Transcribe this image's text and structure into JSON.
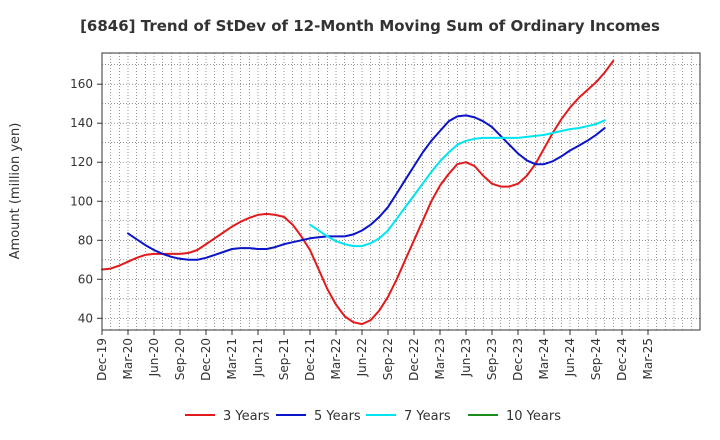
{
  "chart_data": {
    "type": "line",
    "title": "[6846]  Trend of StDev of 12-Month Moving Sum of Ordinary Incomes",
    "xlabel": "",
    "ylabel": "Amount (million yen)",
    "ylim": [
      34,
      176
    ],
    "yticks": [
      40,
      60,
      80,
      100,
      120,
      140,
      160
    ],
    "xlim": [
      0,
      69
    ],
    "xticks": [
      {
        "pos": 0,
        "label": "Dec-19"
      },
      {
        "pos": 3,
        "label": "Mar-20"
      },
      {
        "pos": 6,
        "label": "Jun-20"
      },
      {
        "pos": 9,
        "label": "Sep-20"
      },
      {
        "pos": 12,
        "label": "Dec-20"
      },
      {
        "pos": 15,
        "label": "Mar-21"
      },
      {
        "pos": 18,
        "label": "Jun-21"
      },
      {
        "pos": 21,
        "label": "Sep-21"
      },
      {
        "pos": 24,
        "label": "Dec-21"
      },
      {
        "pos": 27,
        "label": "Mar-22"
      },
      {
        "pos": 30,
        "label": "Jun-22"
      },
      {
        "pos": 33,
        "label": "Sep-22"
      },
      {
        "pos": 36,
        "label": "Dec-22"
      },
      {
        "pos": 39,
        "label": "Mar-23"
      },
      {
        "pos": 42,
        "label": "Jun-23"
      },
      {
        "pos": 45,
        "label": "Sep-23"
      },
      {
        "pos": 48,
        "label": "Dec-23"
      },
      {
        "pos": 51,
        "label": "Mar-24"
      },
      {
        "pos": 54,
        "label": "Jun-24"
      },
      {
        "pos": 57,
        "label": "Sep-24"
      },
      {
        "pos": 60,
        "label": "Dec-24"
      },
      {
        "pos": 63,
        "label": "Mar-25"
      }
    ],
    "grid": true,
    "legend_position": "bottom",
    "series": [
      {
        "name": "3 Years",
        "color": "#e31a1c",
        "points": [
          [
            0,
            65
          ],
          [
            1,
            65.5
          ],
          [
            2,
            67
          ],
          [
            3,
            69
          ],
          [
            4,
            71
          ],
          [
            5,
            72.5
          ],
          [
            6,
            73
          ],
          [
            7,
            73
          ],
          [
            8,
            73
          ],
          [
            9,
            73
          ],
          [
            10,
            73.5
          ],
          [
            11,
            75
          ],
          [
            12,
            78
          ],
          [
            13,
            81
          ],
          [
            14,
            84
          ],
          [
            15,
            87
          ],
          [
            16,
            89.5
          ],
          [
            17,
            91.5
          ],
          [
            18,
            93
          ],
          [
            19,
            93.5
          ],
          [
            20,
            93
          ],
          [
            21,
            92
          ],
          [
            22,
            88
          ],
          [
            23,
            82
          ],
          [
            24,
            75
          ],
          [
            25,
            65
          ],
          [
            26,
            55
          ],
          [
            27,
            47
          ],
          [
            28,
            41
          ],
          [
            29,
            38
          ],
          [
            30,
            37
          ],
          [
            31,
            39
          ],
          [
            32,
            44
          ],
          [
            33,
            51
          ],
          [
            34,
            60
          ],
          [
            35,
            70
          ],
          [
            36,
            80
          ],
          [
            37,
            90
          ],
          [
            38,
            100
          ],
          [
            39,
            108
          ],
          [
            40,
            114
          ],
          [
            41,
            119
          ],
          [
            42,
            120
          ],
          [
            43,
            118
          ],
          [
            44,
            113
          ],
          [
            45,
            109
          ],
          [
            46,
            107.5
          ],
          [
            47,
            107.5
          ],
          [
            48,
            109
          ],
          [
            49,
            113
          ],
          [
            50,
            119
          ],
          [
            51,
            127
          ],
          [
            52,
            135
          ],
          [
            53,
            142
          ],
          [
            54,
            148
          ],
          [
            55,
            153
          ],
          [
            56,
            157
          ],
          [
            57,
            161
          ],
          [
            58,
            166
          ],
          [
            59,
            172
          ]
        ]
      },
      {
        "name": "5 Years",
        "color": "#0a14c8",
        "points": [
          [
            3,
            83.5
          ],
          [
            4,
            80.5
          ],
          [
            5,
            77.5
          ],
          [
            6,
            75
          ],
          [
            7,
            73
          ],
          [
            8,
            71.5
          ],
          [
            9,
            70.5
          ],
          [
            10,
            70
          ],
          [
            11,
            70
          ],
          [
            12,
            71
          ],
          [
            13,
            72.5
          ],
          [
            14,
            74
          ],
          [
            15,
            75.5
          ],
          [
            16,
            76
          ],
          [
            17,
            76
          ],
          [
            18,
            75.5
          ],
          [
            19,
            75.5
          ],
          [
            20,
            76.5
          ],
          [
            21,
            78
          ],
          [
            22,
            79
          ],
          [
            23,
            80
          ],
          [
            24,
            81
          ],
          [
            25,
            81.5
          ],
          [
            26,
            82
          ],
          [
            27,
            82
          ],
          [
            28,
            82
          ],
          [
            29,
            83
          ],
          [
            30,
            85
          ],
          [
            31,
            88
          ],
          [
            32,
            92
          ],
          [
            33,
            97
          ],
          [
            34,
            104
          ],
          [
            35,
            111
          ],
          [
            36,
            118
          ],
          [
            37,
            125
          ],
          [
            38,
            131
          ],
          [
            39,
            136
          ],
          [
            40,
            141
          ],
          [
            41,
            143.5
          ],
          [
            42,
            144
          ],
          [
            43,
            143
          ],
          [
            44,
            141
          ],
          [
            45,
            138
          ],
          [
            46,
            133.5
          ],
          [
            47,
            129
          ],
          [
            48,
            124.5
          ],
          [
            49,
            121
          ],
          [
            50,
            119
          ],
          [
            51,
            119
          ],
          [
            52,
            120.5
          ],
          [
            53,
            123
          ],
          [
            54,
            126
          ],
          [
            55,
            128.5
          ],
          [
            56,
            131
          ],
          [
            57,
            134
          ],
          [
            58,
            137.5
          ]
        ]
      },
      {
        "name": "7 Years",
        "color": "#00e5ef",
        "points": [
          [
            24,
            88
          ],
          [
            25,
            85
          ],
          [
            26,
            82
          ],
          [
            27,
            79.5
          ],
          [
            28,
            78
          ],
          [
            29,
            77
          ],
          [
            30,
            77
          ],
          [
            31,
            78.5
          ],
          [
            32,
            81
          ],
          [
            33,
            85
          ],
          [
            34,
            91
          ],
          [
            35,
            97
          ],
          [
            36,
            103
          ],
          [
            37,
            109
          ],
          [
            38,
            115
          ],
          [
            39,
            120.5
          ],
          [
            40,
            125
          ],
          [
            41,
            129
          ],
          [
            42,
            131
          ],
          [
            43,
            132
          ],
          [
            44,
            132.5
          ],
          [
            45,
            132.5
          ],
          [
            46,
            132.5
          ],
          [
            47,
            132.5
          ],
          [
            48,
            132.5
          ],
          [
            49,
            133
          ],
          [
            50,
            133.5
          ],
          [
            51,
            134
          ],
          [
            52,
            135
          ],
          [
            53,
            136
          ],
          [
            54,
            137
          ],
          [
            55,
            137.5
          ],
          [
            56,
            138.5
          ],
          [
            57,
            139.5
          ],
          [
            58,
            141.5
          ]
        ]
      },
      {
        "name": "10 Years",
        "color": "#1a8c1a",
        "points": []
      }
    ]
  }
}
